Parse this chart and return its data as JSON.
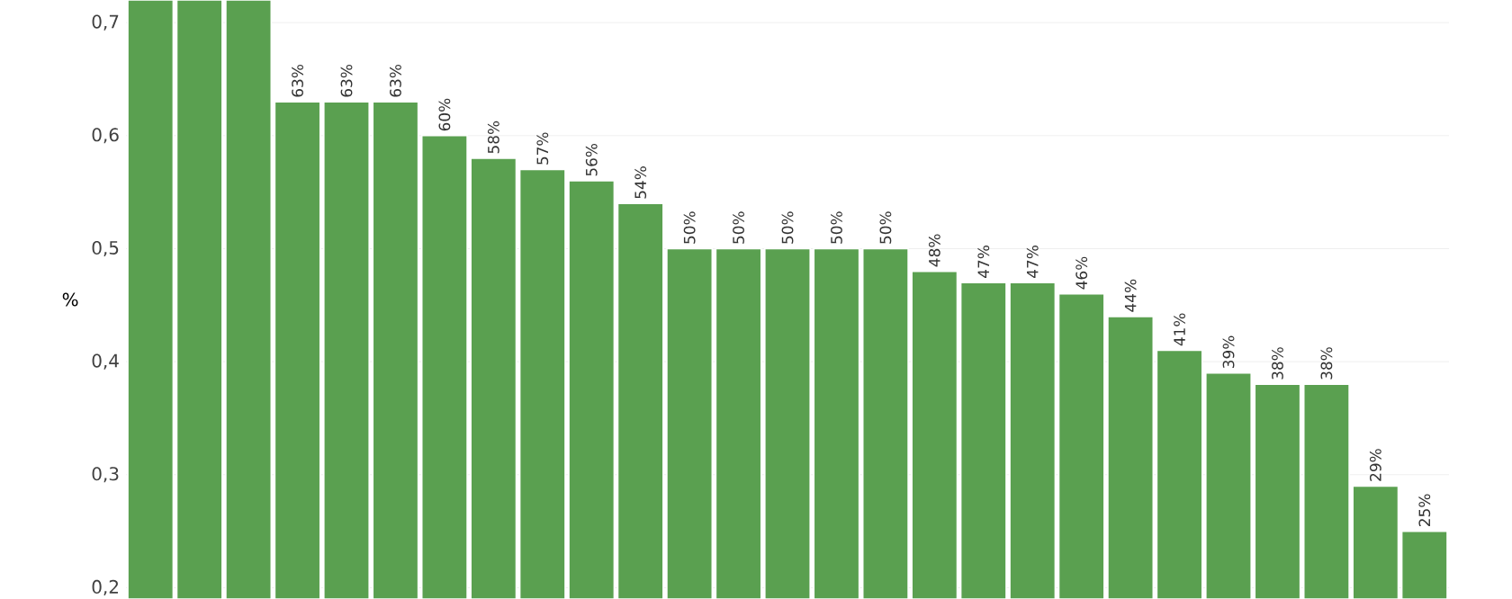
{
  "chart_data": {
    "type": "bar",
    "ylabel": "%",
    "categories": [
      null,
      null,
      null,
      null,
      null,
      null,
      null,
      null,
      null,
      null,
      null,
      null,
      null,
      null,
      null,
      null,
      null,
      null,
      null,
      null,
      null,
      null,
      null,
      null,
      null,
      null,
      null
    ],
    "values": [
      0.72,
      0.72,
      0.72,
      0.63,
      0.63,
      0.63,
      0.6,
      0.58,
      0.57,
      0.56,
      0.54,
      0.5,
      0.5,
      0.5,
      0.5,
      0.5,
      0.48,
      0.47,
      0.47,
      0.46,
      0.44,
      0.41,
      0.39,
      0.38,
      0.38,
      0.29,
      0.25
    ],
    "value_labels": [
      null,
      null,
      null,
      "63%",
      "63%",
      "63%",
      "60%",
      "58%",
      "57%",
      "56%",
      "54%",
      "50%",
      "50%",
      "50%",
      "50%",
      "50%",
      "48%",
      "47%",
      "47%",
      "46%",
      "44%",
      "41%",
      "39%",
      "38%",
      "38%",
      "29%",
      "25%"
    ],
    "color": "#5aa050",
    "ylim": [
      0.19,
      0.72
    ],
    "yticks": [
      {
        "value": 0.2,
        "label": "0,2"
      },
      {
        "value": 0.3,
        "label": "0,3"
      },
      {
        "value": 0.4,
        "label": "0,4"
      },
      {
        "value": 0.5,
        "label": "0,5"
      },
      {
        "value": 0.6,
        "label": "0,6"
      },
      {
        "value": 0.7,
        "label": "0,7"
      }
    ],
    "grid": "y",
    "tick_labels": "y"
  }
}
